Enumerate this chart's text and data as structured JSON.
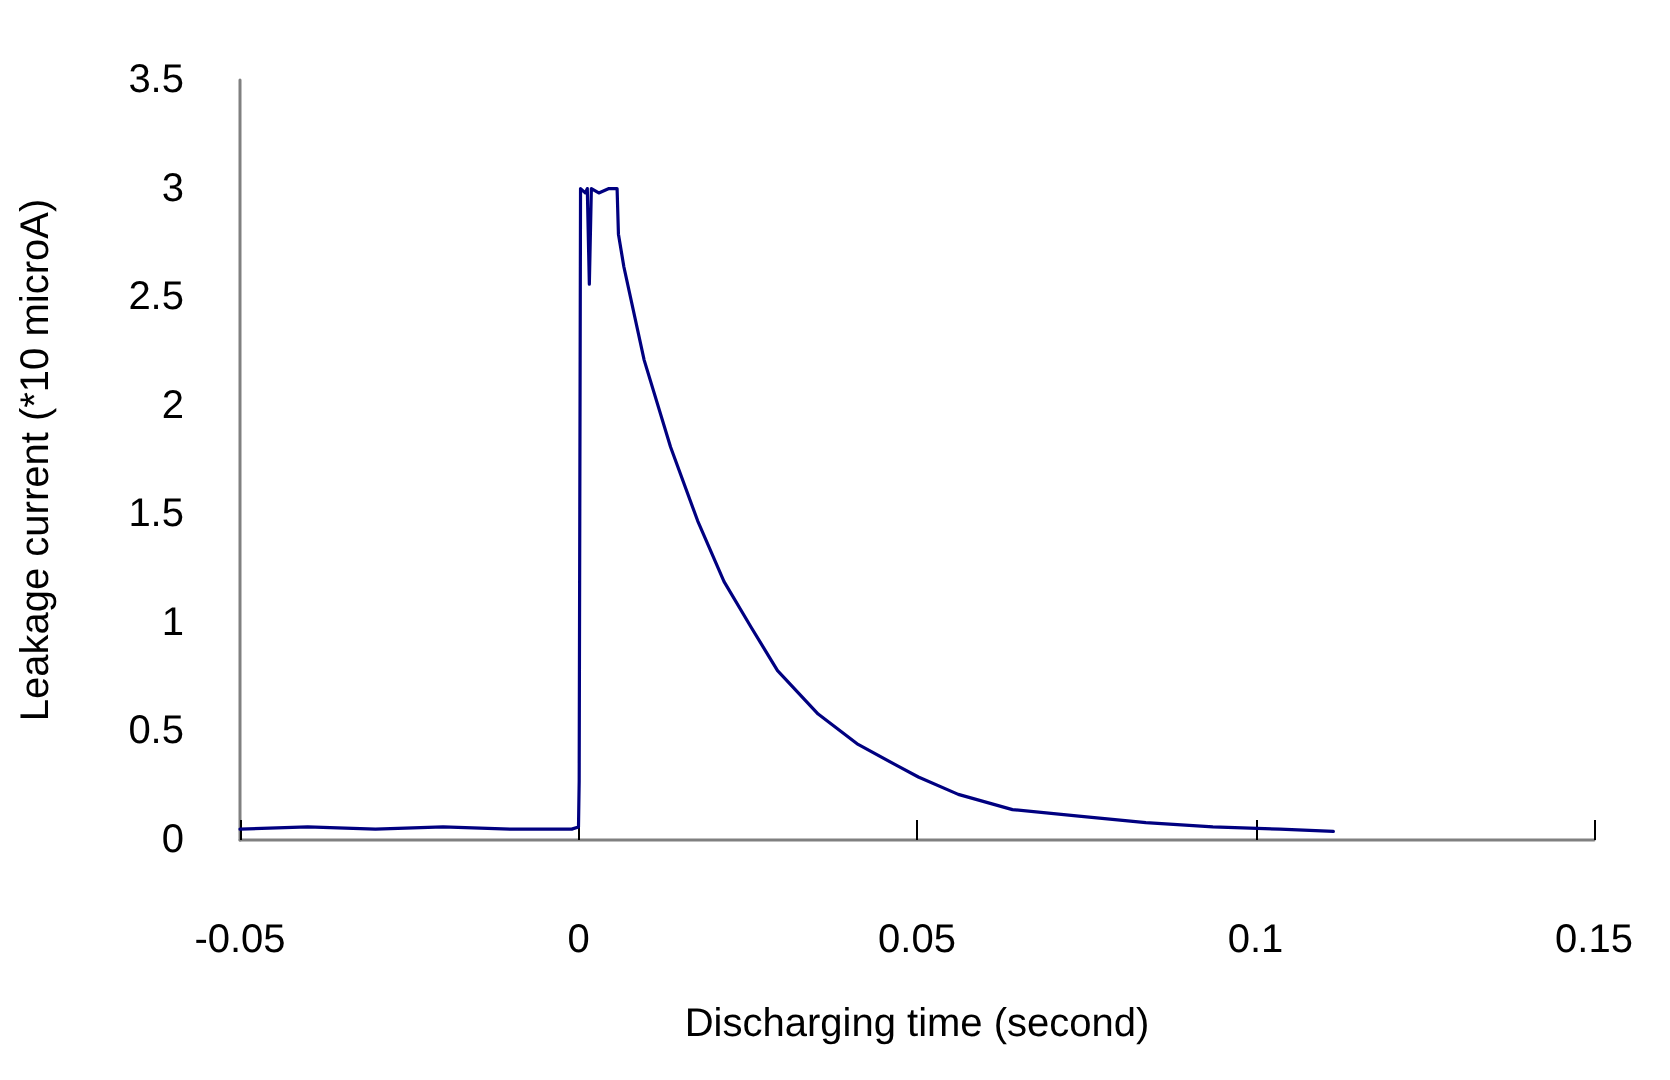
{
  "chart_data": {
    "type": "line",
    "xlabel": "Discharging time (second)",
    "ylabel": "Leakage current (*10 microA)",
    "series": [
      {
        "color": "#000080",
        "x": [
          -0.05,
          -0.04,
          -0.03,
          -0.02,
          -0.01,
          -0.001,
          0,
          0.0001,
          0.0003,
          0.001,
          0.0013,
          0.0016,
          0.0019,
          0.003,
          0.0045,
          0.0057,
          0.0059,
          0.0067,
          0.0097,
          0.0136,
          0.0176,
          0.0215,
          0.0255,
          0.0294,
          0.0354,
          0.0413,
          0.0472,
          0.0502,
          0.0561,
          0.0641,
          0.0739,
          0.0838,
          0.0937,
          0.1036,
          0.1115
        ],
        "values": [
          0.05,
          0.06,
          0.05,
          0.06,
          0.05,
          0.05,
          0.06,
          0.27,
          3.0,
          2.98,
          3.0,
          2.56,
          3.0,
          2.98,
          3.0,
          3.0,
          2.79,
          2.64,
          2.21,
          1.81,
          1.47,
          1.19,
          0.98,
          0.78,
          0.58,
          0.44,
          0.34,
          0.29,
          0.21,
          0.14,
          0.11,
          0.08,
          0.06,
          0.05,
          0.04
        ]
      }
    ],
    "xlim": [
      -0.05,
      0.15
    ],
    "xticks": [
      -0.05,
      0,
      0.05,
      0.1,
      0.15
    ],
    "ylim": [
      0,
      3.5
    ],
    "yticks": [
      0,
      0.5,
      1,
      1.5,
      2,
      2.5,
      3,
      3.5
    ],
    "grid": false,
    "marker": "none",
    "line_style": "solid"
  }
}
